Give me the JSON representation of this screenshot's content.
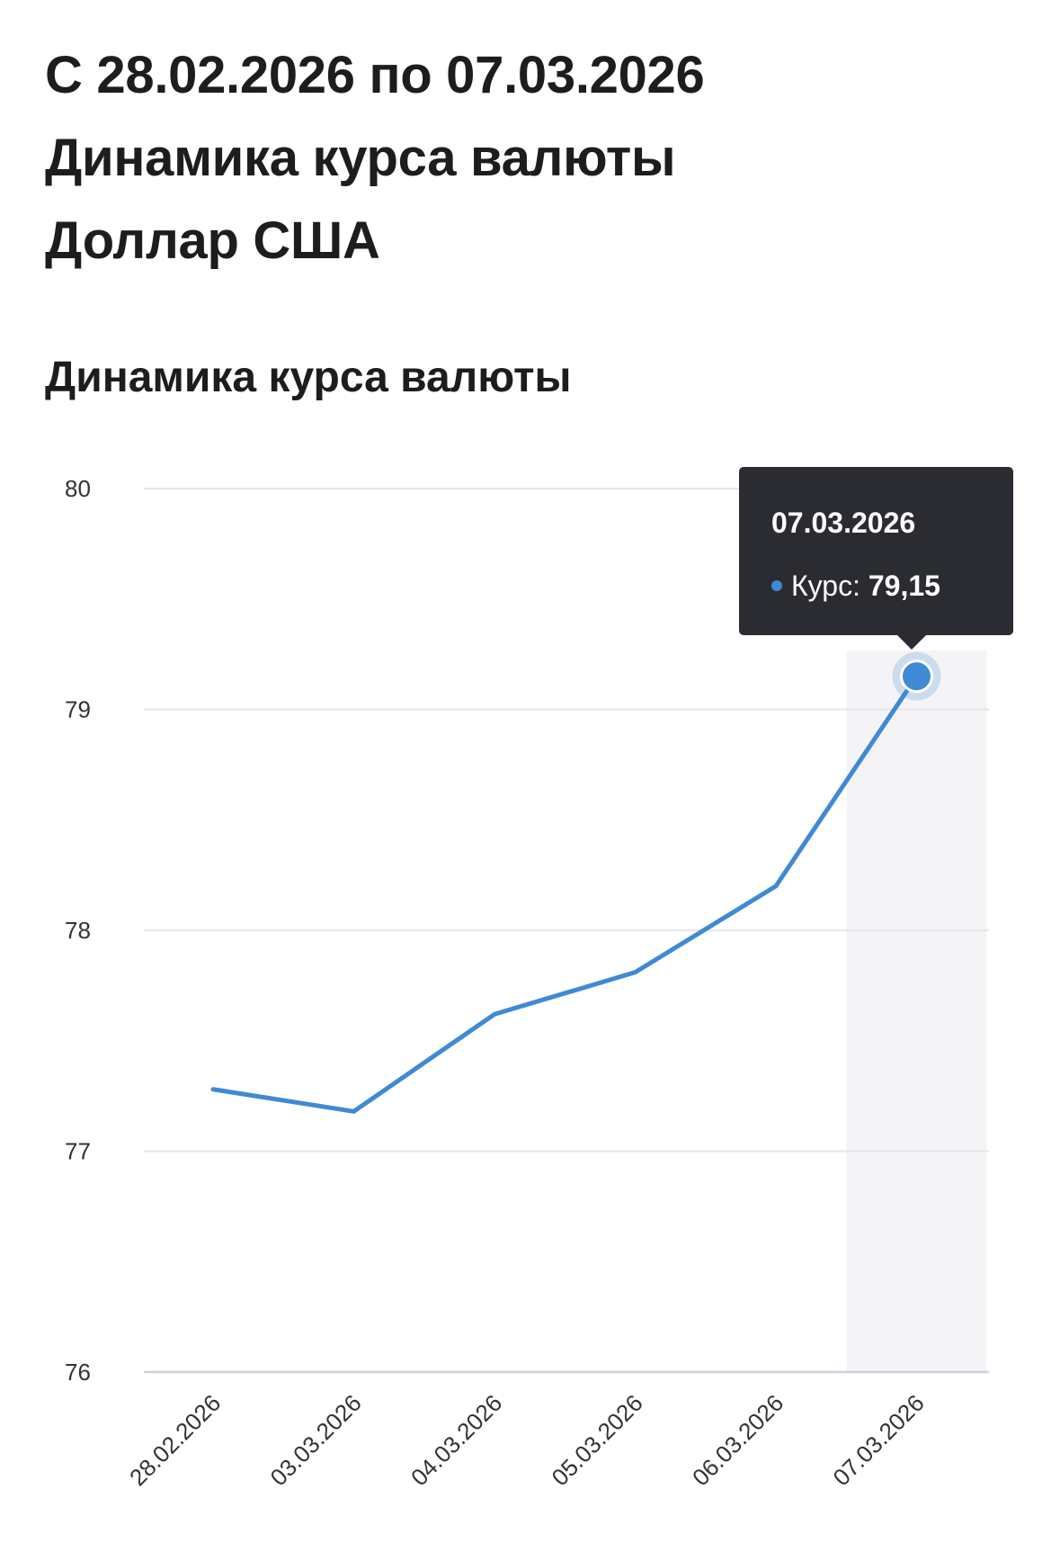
{
  "header": {
    "lines": [
      "С 28.02.2026 по 07.03.2026",
      "Динамика курса валюты",
      "Доллар США"
    ]
  },
  "section_title": "Динамика курса валюты",
  "tooltip": {
    "date": "07.03.2026",
    "series_label": "Курс:",
    "value": "79,15"
  },
  "colors": {
    "line": "#3f8ad4",
    "grid": "#e6e6ea",
    "axis": "#cfcfdd",
    "highlight": "#f4f4f6",
    "tooltip_bg": "#2b2c31"
  },
  "chart_data": {
    "type": "line",
    "title": "",
    "xlabel": "",
    "ylabel": "",
    "categories": [
      "28.02.2026",
      "03.03.2026",
      "04.03.2026",
      "05.03.2026",
      "06.03.2026",
      "07.03.2026"
    ],
    "series": [
      {
        "values": [
          77.28,
          77.18,
          77.62,
          77.81,
          78.2,
          79.15
        ]
      }
    ],
    "ylim": [
      76,
      80
    ],
    "yticks": [
      76,
      77,
      78,
      79,
      80
    ],
    "grid": true,
    "legend": "none",
    "highlighted_index": 5
  }
}
